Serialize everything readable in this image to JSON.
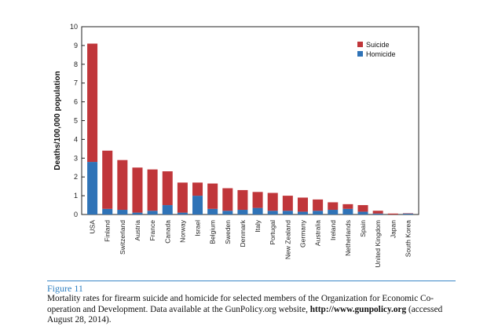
{
  "chart_data": {
    "type": "bar",
    "stacked": true,
    "categories": [
      "USA",
      "Finland",
      "Switzerland",
      "Austria",
      "France",
      "Canada",
      "Norway",
      "Israel",
      "Belgium",
      "Sweden",
      "Denmark",
      "Italy",
      "Portugal",
      "New Zealand",
      "Germany",
      "Australia",
      "Ireland",
      "Netherlands",
      "Spain",
      "United Kingdom",
      "Japan",
      "South Korea"
    ],
    "series": [
      {
        "name": "Homicide",
        "color": "#2f73b7",
        "values": [
          2.8,
          0.3,
          0.25,
          0.1,
          0.2,
          0.5,
          0.1,
          1.0,
          0.3,
          0.2,
          0.25,
          0.35,
          0.2,
          0.2,
          0.15,
          0.2,
          0.25,
          0.3,
          0.15,
          0.05,
          0.0,
          0.05
        ]
      },
      {
        "name": "Suicide",
        "color": "#c0363a",
        "values": [
          6.3,
          3.1,
          2.65,
          2.4,
          2.2,
          1.8,
          1.6,
          0.7,
          1.35,
          1.2,
          1.05,
          0.85,
          0.95,
          0.8,
          0.75,
          0.6,
          0.4,
          0.25,
          0.35,
          0.15,
          0.05,
          0.02
        ]
      }
    ],
    "ylabel": "Deaths/100,000 population",
    "xlabel": "",
    "ylim": [
      0,
      10
    ],
    "yticks": [
      "0",
      "1",
      "2",
      "3",
      "4",
      "5",
      "6",
      "7",
      "8",
      "9",
      "10"
    ],
    "legend": [
      {
        "name": "Suicide",
        "color": "#c0363a"
      },
      {
        "name": "Homicide",
        "color": "#2f73b7"
      }
    ],
    "legend_position": "top-right",
    "grid": false
  },
  "caption": {
    "figure_label": "Figure 11",
    "text_before_url": "Mortality rates for firearm suicide and homicide for selected members of the Organization for Economic Co-operation and Development. Data available at the GunPolicy.org website, ",
    "url": "http://www.gunpolicy.org",
    "text_after_url": " (accessed August 28, 2014)."
  }
}
